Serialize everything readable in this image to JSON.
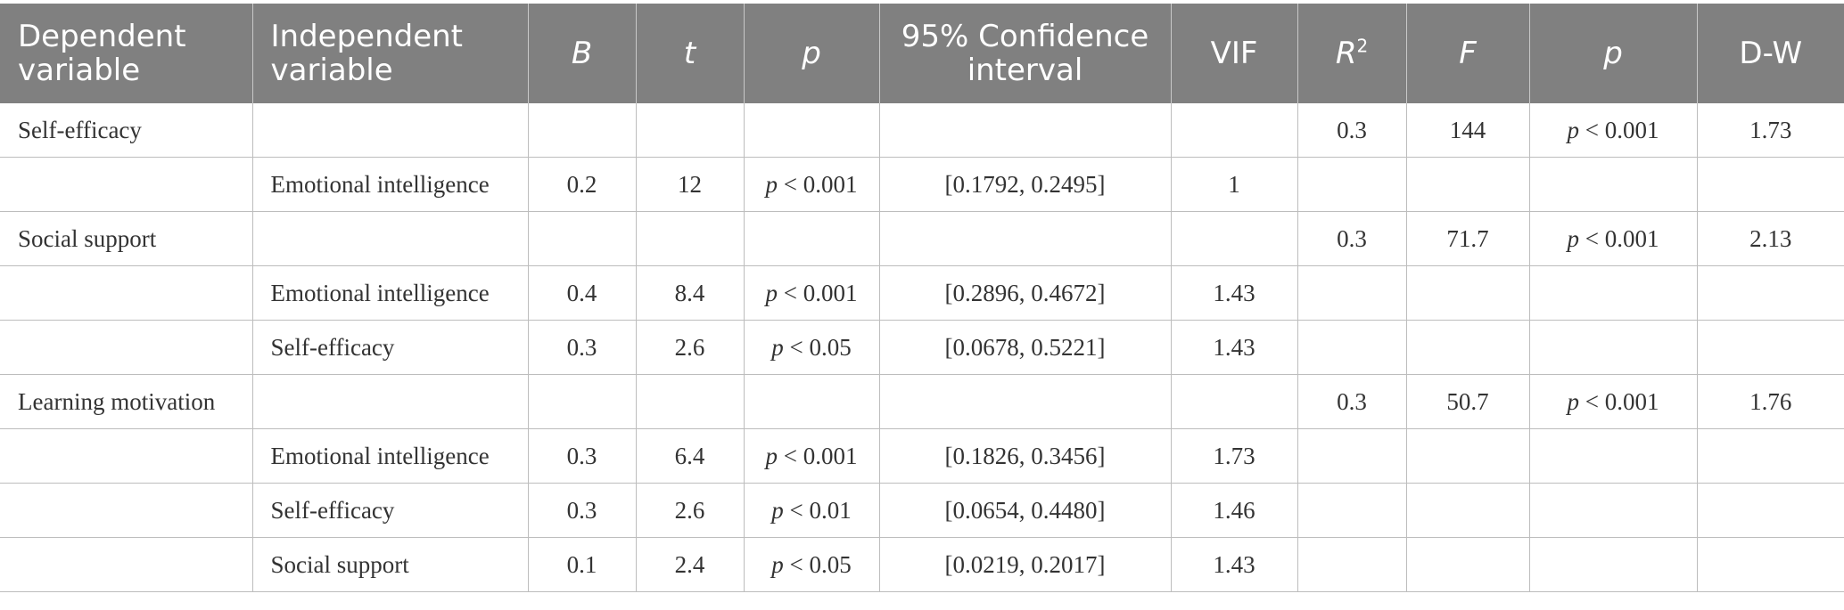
{
  "table": {
    "headers": {
      "dep": "Dependent variable",
      "indep": "Independent variable",
      "b": "B",
      "t": "t",
      "p1": "p",
      "ci": "95% Confidence interval",
      "vif": "VIF",
      "r2_base": "R",
      "r2_sup": "2",
      "f": "F",
      "p2": "p",
      "dw": "D-W"
    },
    "rows": [
      {
        "dep": "Self-efficacy",
        "indep": "",
        "b": "",
        "t": "",
        "p1": "",
        "ci": "",
        "vif": "",
        "r2": "0.3",
        "f": "144",
        "p2": "p < 0.001",
        "dw": "1.73"
      },
      {
        "dep": "",
        "indep": "Emotional intelligence",
        "b": "0.2",
        "t": "12",
        "p1": "p < 0.001",
        "ci": "[0.1792, 0.2495]",
        "vif": "1",
        "r2": "",
        "f": "",
        "p2": "",
        "dw": ""
      },
      {
        "dep": "Social support",
        "indep": "",
        "b": "",
        "t": "",
        "p1": "",
        "ci": "",
        "vif": "",
        "r2": "0.3",
        "f": "71.7",
        "p2": "p < 0.001",
        "dw": "2.13"
      },
      {
        "dep": "",
        "indep": "Emotional intelligence",
        "b": "0.4",
        "t": "8.4",
        "p1": "p < 0.001",
        "ci": "[0.2896, 0.4672]",
        "vif": "1.43",
        "r2": "",
        "f": "",
        "p2": "",
        "dw": ""
      },
      {
        "dep": "",
        "indep": "Self-efficacy",
        "b": "0.3",
        "t": "2.6",
        "p1": "p < 0.05",
        "ci": "[0.0678, 0.5221]",
        "vif": "1.43",
        "r2": "",
        "f": "",
        "p2": "",
        "dw": ""
      },
      {
        "dep": "Learning motivation",
        "indep": "",
        "b": "",
        "t": "",
        "p1": "",
        "ci": "",
        "vif": "",
        "r2": "0.3",
        "f": "50.7",
        "p2": "p < 0.001",
        "dw": "1.76"
      },
      {
        "dep": "",
        "indep": "Emotional intelligence",
        "b": "0.3",
        "t": "6.4",
        "p1": "p < 0.001",
        "ci": "[0.1826, 0.3456]",
        "vif": "1.73",
        "r2": "",
        "f": "",
        "p2": "",
        "dw": ""
      },
      {
        "dep": "",
        "indep": "Self-efficacy",
        "b": "0.3",
        "t": "2.6",
        "p1": "p < 0.01",
        "ci": "[0.0654, 0.4480]",
        "vif": "1.46",
        "r2": "",
        "f": "",
        "p2": "",
        "dw": ""
      },
      {
        "dep": "",
        "indep": "Social support",
        "b": "0.1",
        "t": "2.4",
        "p1": "p < 0.05",
        "ci": "[0.0219, 0.2017]",
        "vif": "1.43",
        "r2": "",
        "f": "",
        "p2": "",
        "dw": ""
      }
    ]
  },
  "colors": {
    "header_bg": "#808080",
    "header_text": "#ffffff",
    "border": "#bdbdbd",
    "body_text": "#333333"
  }
}
